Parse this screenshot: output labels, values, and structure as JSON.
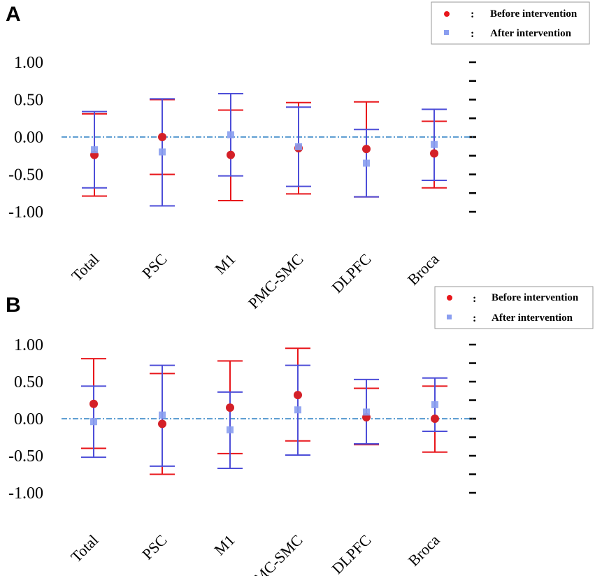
{
  "chart_data": [
    {
      "panel_label": "A",
      "type": "errorbar",
      "categories": [
        "Total",
        "PSC",
        "M1",
        "PMC-SMC",
        "DLPFC",
        "Broca"
      ],
      "ylim": [
        -1.0,
        1.0
      ],
      "yticks": [
        "1.00",
        "0.50",
        "0.00",
        "-0.50",
        "-1.00"
      ],
      "reference_line": 0.0,
      "legend": {
        "position": "top-right",
        "entries": [
          {
            "name": "Before intervention",
            "colon": ":"
          },
          {
            "name": "After intervention",
            "colon": ":"
          }
        ]
      },
      "series": [
        {
          "name": "Before intervention",
          "color": "#e8161b",
          "marker": "circle",
          "values": [
            -0.24,
            0.0,
            -0.24,
            -0.15,
            -0.16,
            -0.22
          ],
          "lower": [
            -0.79,
            -0.5,
            -0.85,
            -0.76,
            -0.8,
            -0.68
          ],
          "upper": [
            0.31,
            0.5,
            0.36,
            0.46,
            0.47,
            0.21
          ]
        },
        {
          "name": "After intervention",
          "color": "#4d4ed8",
          "marker": "square",
          "values": [
            -0.17,
            -0.2,
            0.03,
            -0.13,
            -0.35,
            -0.1
          ],
          "lower": [
            -0.68,
            -0.92,
            -0.52,
            -0.66,
            -0.8,
            -0.58
          ],
          "upper": [
            0.34,
            0.51,
            0.58,
            0.4,
            0.1,
            0.37
          ]
        }
      ]
    },
    {
      "panel_label": "B",
      "type": "errorbar",
      "categories": [
        "Total",
        "PSC",
        "M1",
        "PMC-SMC",
        "DLPFC",
        "Broca"
      ],
      "ylim": [
        -1.0,
        1.0
      ],
      "yticks": [
        "1.00",
        "0.50",
        "0.00",
        "-0.50",
        "-1.00"
      ],
      "reference_line": 0.0,
      "legend": {
        "position": "top-right",
        "entries": [
          {
            "name": "Before intervention",
            "colon": ":"
          },
          {
            "name": "After intervention",
            "colon": ":"
          }
        ]
      },
      "series": [
        {
          "name": "Before intervention",
          "color": "#e8161b",
          "marker": "circle",
          "values": [
            0.2,
            -0.07,
            0.15,
            0.32,
            0.02,
            0.0
          ],
          "lower": [
            -0.4,
            -0.75,
            -0.47,
            -0.3,
            -0.35,
            -0.45
          ],
          "upper": [
            0.81,
            0.61,
            0.78,
            0.95,
            0.41,
            0.44
          ]
        },
        {
          "name": "After intervention",
          "color": "#4d4ed8",
          "marker": "square",
          "values": [
            -0.04,
            0.05,
            -0.15,
            0.12,
            0.09,
            0.19
          ],
          "lower": [
            -0.52,
            -0.64,
            -0.67,
            -0.49,
            -0.34,
            -0.17
          ],
          "upper": [
            0.44,
            0.72,
            0.36,
            0.72,
            0.53,
            0.55
          ]
        }
      ]
    }
  ]
}
